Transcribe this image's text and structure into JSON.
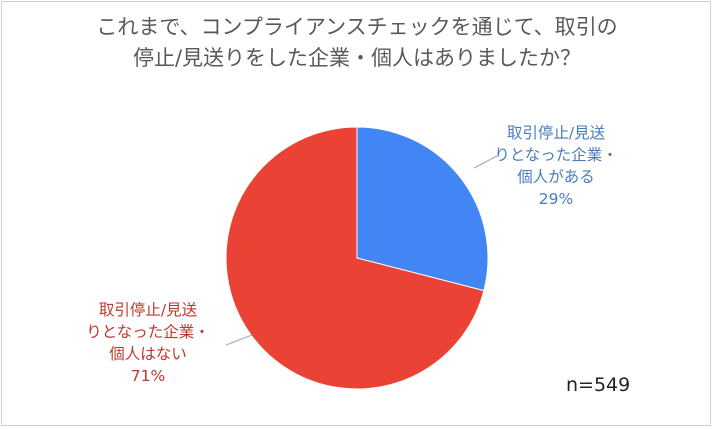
{
  "chart_data": {
    "type": "pie",
    "title_lines": [
      "これまで、コンプライアンスチェックを通じて、取引の",
      "停止/見送りをした企業・個人はありましたか？"
    ],
    "slices": [
      {
        "label_lines": [
          "取引停止/見送",
          "りとなった企業・",
          "個人がある"
        ],
        "value": 29,
        "value_label": "29%",
        "color": "#4285f4",
        "label_color": "#4a7cc0"
      },
      {
        "label_lines": [
          "取引停止/見送",
          "りとなった企業・",
          "個人はない"
        ],
        "value": 71,
        "value_label": "71%",
        "color": "#ea4335",
        "label_color": "#c0392b"
      }
    ],
    "start": "12 o'clock",
    "direction": "clockwise",
    "legend": "none",
    "sample_size": "n=549"
  }
}
